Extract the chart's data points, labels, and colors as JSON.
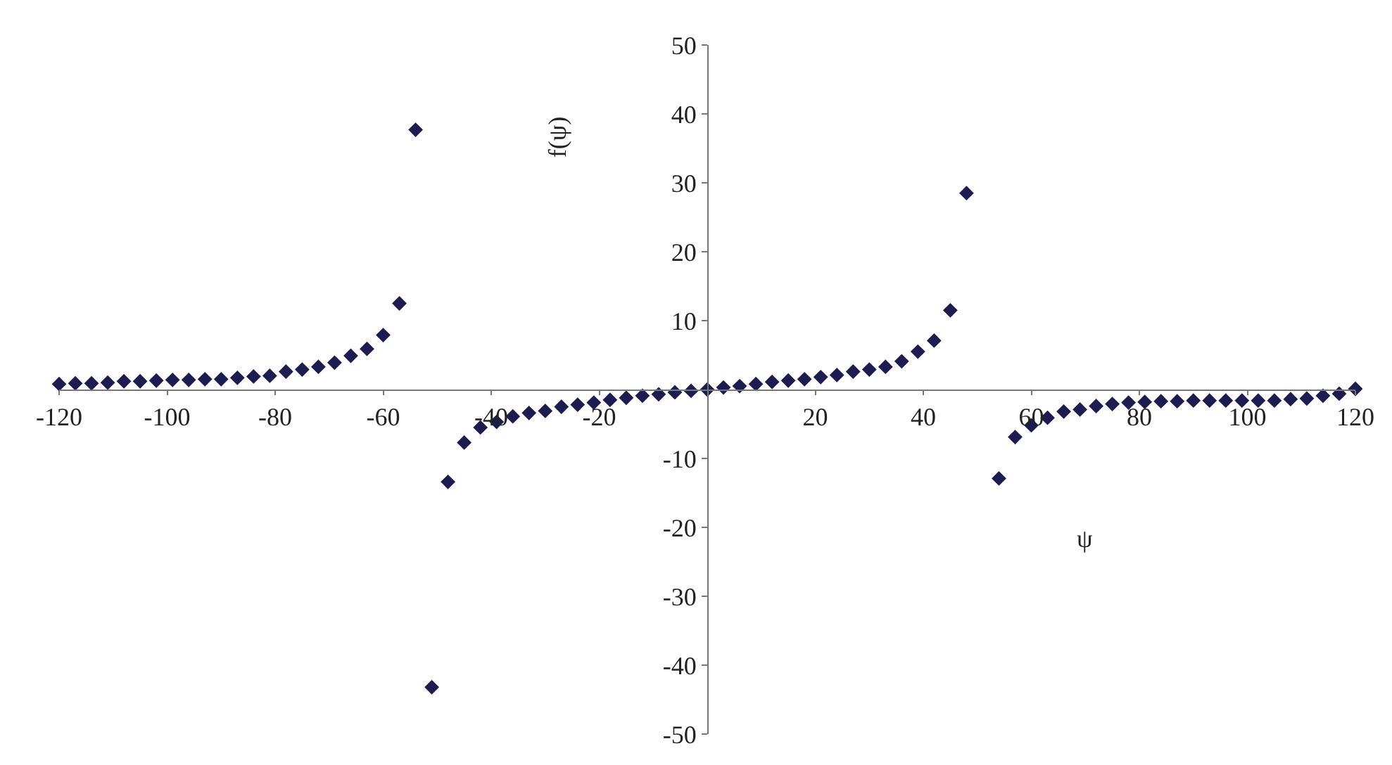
{
  "chart_data": {
    "type": "scatter",
    "xlabel": "ψ",
    "ylabel": "f(ψ)",
    "series": [
      {
        "color": "#1c1c50",
        "x": [
          -120,
          -117,
          -114,
          -111,
          -108,
          -105,
          -102,
          -99,
          -96,
          -93,
          -90,
          -87,
          -84,
          -81,
          -78,
          -75,
          -72,
          -69,
          -66,
          -63,
          -60,
          -57,
          -54,
          -51,
          -48,
          -45,
          -42,
          -39,
          -36,
          -33,
          -30,
          -27,
          -24,
          -21,
          -18,
          -15,
          -12,
          -9,
          -6,
          -3,
          0,
          3,
          6,
          9,
          12,
          15,
          18,
          21,
          24,
          27,
          30,
          33,
          36,
          39,
          42,
          45,
          48,
          54,
          57,
          60,
          63,
          66,
          69,
          72,
          75,
          78,
          81,
          84,
          87,
          90,
          93,
          96,
          99,
          102,
          105,
          108,
          111,
          114,
          117,
          120
        ],
        "values": [
          0.8,
          0.9,
          0.9,
          1.0,
          1.2,
          1.2,
          1.3,
          1.4,
          1.4,
          1.5,
          1.5,
          1.7,
          1.9,
          2.0,
          2.6,
          2.9,
          3.3,
          3.9,
          4.9,
          5.9,
          7.9,
          12.5,
          37.7,
          -43.2,
          -13.4,
          -7.7,
          -5.5,
          -4.7,
          -3.9,
          -3.4,
          -3.1,
          -2.5,
          -2.2,
          -1.9,
          -1.5,
          -1.2,
          -0.9,
          -0.7,
          -0.4,
          -0.2,
          0,
          0.3,
          0.5,
          0.8,
          1.1,
          1.3,
          1.5,
          1.8,
          2.1,
          2.6,
          2.9,
          3.3,
          4.1,
          5.5,
          7.1,
          11.5,
          28.5,
          -12.9,
          -6.9,
          -5.2,
          -4.1,
          -3.2,
          -2.9,
          -2.4,
          -2.1,
          -1.9,
          -1.8,
          -1.7,
          -1.7,
          -1.6,
          -1.6,
          -1.6,
          -1.6,
          -1.6,
          -1.6,
          -1.4,
          -1.3,
          -0.9,
          -0.6,
          0.1
        ]
      }
    ],
    "xlim": [
      -120,
      120
    ],
    "ylim": [
      -50,
      50
    ],
    "xticks": [
      -120,
      -100,
      -80,
      -60,
      -40,
      -20,
      20,
      40,
      60,
      80,
      100,
      120
    ],
    "yticks": [
      -50,
      -40,
      -30,
      -20,
      -10,
      10,
      20,
      30,
      40,
      50
    ],
    "marker": "diamond"
  }
}
